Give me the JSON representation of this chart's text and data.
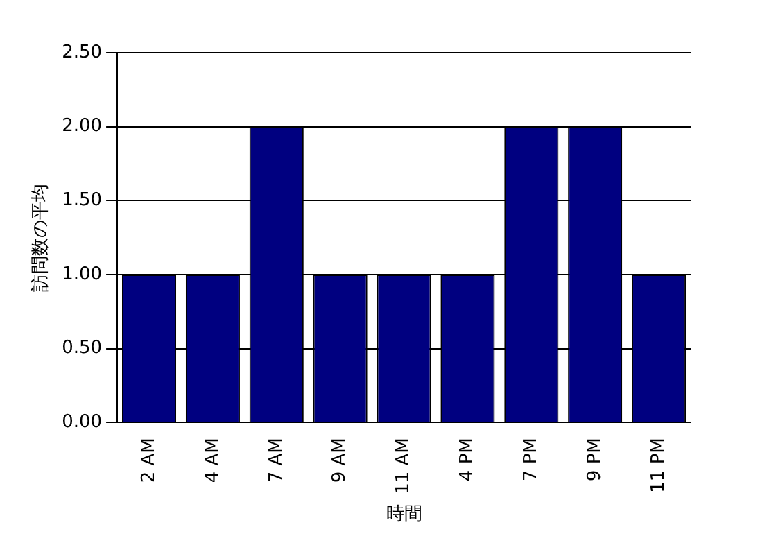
{
  "chart_data": {
    "type": "bar",
    "xlabel": "時間",
    "ylabel": "訪問数の平均",
    "categories": [
      "2 AM",
      "4 AM",
      "7 AM",
      "9 AM",
      "11 AM",
      "4 PM",
      "7 PM",
      "9 PM",
      "11 PM"
    ],
    "values": [
      1,
      1,
      2,
      1,
      1,
      1,
      2,
      2,
      1
    ],
    "color": "#000080",
    "ylim": [
      0,
      2.5
    ],
    "yticks": [
      {
        "value": 0,
        "label": "0.00"
      },
      {
        "value": 0.5,
        "label": "0.50"
      },
      {
        "value": 1,
        "label": "1.00"
      },
      {
        "value": 1.5,
        "label": "1.50"
      },
      {
        "value": 2,
        "label": "2.00"
      },
      {
        "value": 2.5,
        "label": "2.50"
      }
    ],
    "grid": "y",
    "legend": false
  }
}
